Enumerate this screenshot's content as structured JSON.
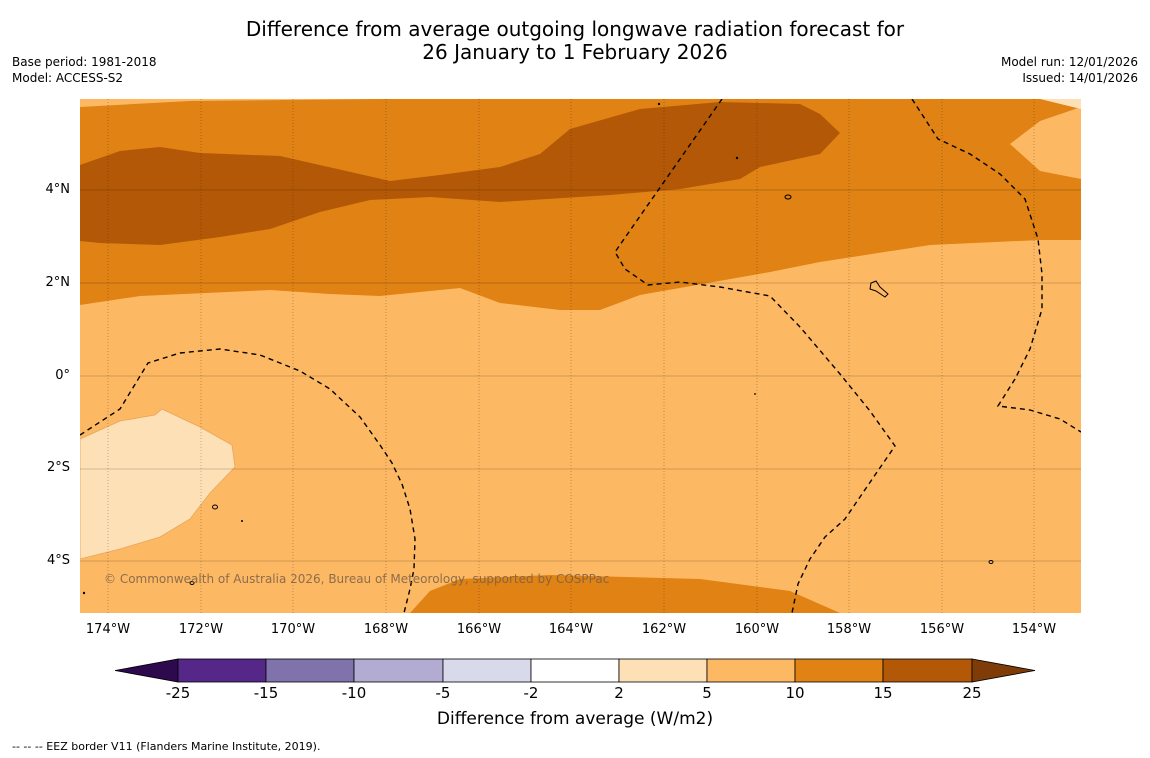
{
  "title": {
    "line1": "Difference from average outgoing longwave radiation forecast for",
    "line2": "26 January to 1 February 2026"
  },
  "meta": {
    "base_period": "Base period: 1981-2018",
    "model": "Model: ACCESS-S2",
    "model_run": "Model run: 12/01/2026",
    "issued": "Issued: 14/01/2026"
  },
  "map": {
    "lat_labels": [
      "4°N",
      "2°N",
      "0°",
      "2°S",
      "4°S"
    ],
    "lon_labels": [
      "174°W",
      "172°W",
      "170°W",
      "168°W",
      "166°W",
      "164°W",
      "162°W",
      "160°W",
      "158°W",
      "156°W",
      "154°W"
    ],
    "credit": "© Commonwealth of Australia 2026, Bureau of Meteorology, supported by COSPPac"
  },
  "colorbar": {
    "label": "Difference from average (W/m2)",
    "ticks": [
      "-25",
      "-15",
      "-10",
      "-5",
      "-2",
      "2",
      "5",
      "10",
      "15",
      "25"
    ],
    "colors": {
      "below_min": "#2d0a4e",
      "c_m25_m15": "#542788",
      "c_m15_m10": "#8073ac",
      "c_m10_m5": "#b2abd2",
      "c_m5_m2": "#d8daeb",
      "c_m2_2": "#ffffff",
      "c_2_5": "#fee0b6",
      "c_5_10": "#fdb863",
      "c_10_15": "#e08214",
      "c_15_25": "#b35806",
      "above_max": "#7f3b08"
    }
  },
  "footnote": "--  --  -- EEZ border V11 (Flanders Marine Institute, 2019)."
}
